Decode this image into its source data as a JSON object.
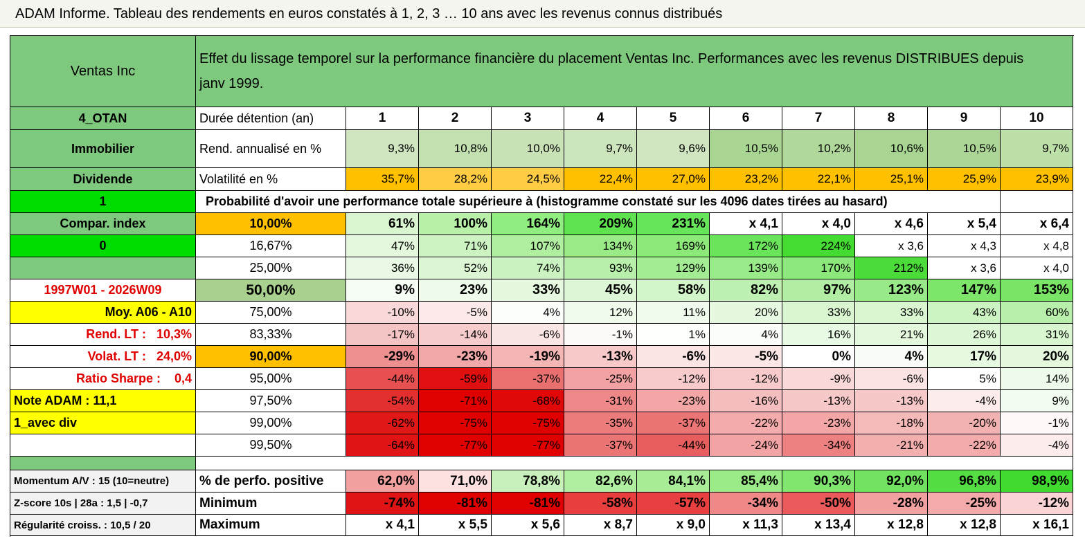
{
  "title": "ADAM Informe. Tableau des rendements en euros constatés à 1, 2, 3 … 10 ans avec les revenus connus distribués",
  "table": {
    "header": [
      "Ventas Inc",
      "Effet du lissage temporel sur la performance financière du placement Ventas Inc. Performances avec les revenus DISTRIBUES depuis janv 1999."
    ],
    "rows": [
      [
        "4_OTAN",
        "Durée détention (an)",
        "1",
        "2",
        "3",
        "4",
        "5",
        "6",
        "7",
        "8",
        "9",
        "10"
      ],
      [
        "Immobilier",
        "Rend. annualisé en %",
        "9,3%",
        "10,8%",
        "10,0%",
        "9,7%",
        "9,6%",
        "10,5%",
        "10,2%",
        "10,6%",
        "10,5%",
        "9,7%"
      ],
      [
        "Dividende",
        "Volatilité en %",
        "35,7%",
        "28,2%",
        "24,5%",
        "22,4%",
        "27,0%",
        "23,2%",
        "22,1%",
        "25,1%",
        "25,9%",
        "23,9%"
      ],
      [
        "1",
        "Probabilité d'avoir une performance totale supérieure à (histogramme constaté sur les 4096 dates tirées au hasard)"
      ],
      [
        "Compar. index",
        "10,00%",
        "61%",
        "100%",
        "164%",
        "209%",
        "231%",
        "x 4,1",
        "x 4,0",
        "x 4,6",
        "x 5,4",
        "x 6,4"
      ],
      [
        "0",
        "16,67%",
        "47%",
        "71%",
        "107%",
        "134%",
        "169%",
        "172%",
        "224%",
        "x 3,6",
        "x 4,3",
        "x 4,8"
      ],
      [
        null,
        "25,00%",
        "36%",
        "52%",
        "74%",
        "93%",
        "129%",
        "139%",
        "170%",
        "212%",
        "x 3,6",
        "x 4,0"
      ],
      [
        "1997W01 - 2026W09",
        "50,00%",
        "9%",
        "23%",
        "33%",
        "45%",
        "58%",
        "82%",
        "97%",
        "123%",
        "147%",
        "153%"
      ],
      [
        "Moy. A06 - A10",
        "75,00%",
        "-10%",
        "-5%",
        "4%",
        "12%",
        "11%",
        "20%",
        "33%",
        "33%",
        "43%",
        "60%"
      ],
      [
        "Rend. LT :   10,3%",
        "83,33%",
        "-17%",
        "-14%",
        "-6%",
        "-1%",
        "1%",
        "4%",
        "16%",
        "21%",
        "26%",
        "31%"
      ],
      [
        "Volat. LT :   24,0%",
        "90,00%",
        "-29%",
        "-23%",
        "-19%",
        "-13%",
        "-6%",
        "-5%",
        "0%",
        "4%",
        "17%",
        "20%"
      ],
      [
        "Ratio Sharpe :    0,4",
        "95,00%",
        "-44%",
        "-59%",
        "-37%",
        "-25%",
        "-12%",
        "-12%",
        "-9%",
        "-6%",
        "5%",
        "14%"
      ],
      [
        "Note ADAM : 11,1",
        "97,50%",
        "-54%",
        "-71%",
        "-68%",
        "-31%",
        "-23%",
        "-16%",
        "-13%",
        "-13%",
        "-4%",
        "9%"
      ],
      [
        "1_avec div",
        "99,00%",
        "-62%",
        "-75%",
        "-75%",
        "-35%",
        "-37%",
        "-22%",
        "-23%",
        "-18%",
        "-20%",
        "-1%"
      ],
      [
        null,
        "99,50%",
        "-64%",
        "-77%",
        "-77%",
        "-37%",
        "-44%",
        "-24%",
        "-34%",
        "-21%",
        "-22%",
        "-4%"
      ],
      [
        "Momentum A/V : 15 (10=neutre)",
        "% de perfo. positive",
        "62,0%",
        "71,0%",
        "78,8%",
        "82,6%",
        "84,1%",
        "85,4%",
        "90,3%",
        "92,0%",
        "96,8%",
        "98,9%"
      ],
      [
        "Z-score 10s | 28a : 1,5 | -0,7",
        "Minimum",
        "-74%",
        "-81%",
        "-81%",
        "-58%",
        "-57%",
        "-34%",
        "-50%",
        "-28%",
        "-25%",
        "-12%"
      ],
      [
        "Régularité croiss. : 10,5 / 20",
        "Maximum",
        "x 4,1",
        "x 5,5",
        "x 5,6",
        "x 8,7",
        "x 9,0",
        "x 11,3",
        "x 13,4",
        "x 12,8",
        "x 12,8",
        "x 16,1"
      ]
    ]
  }
}
